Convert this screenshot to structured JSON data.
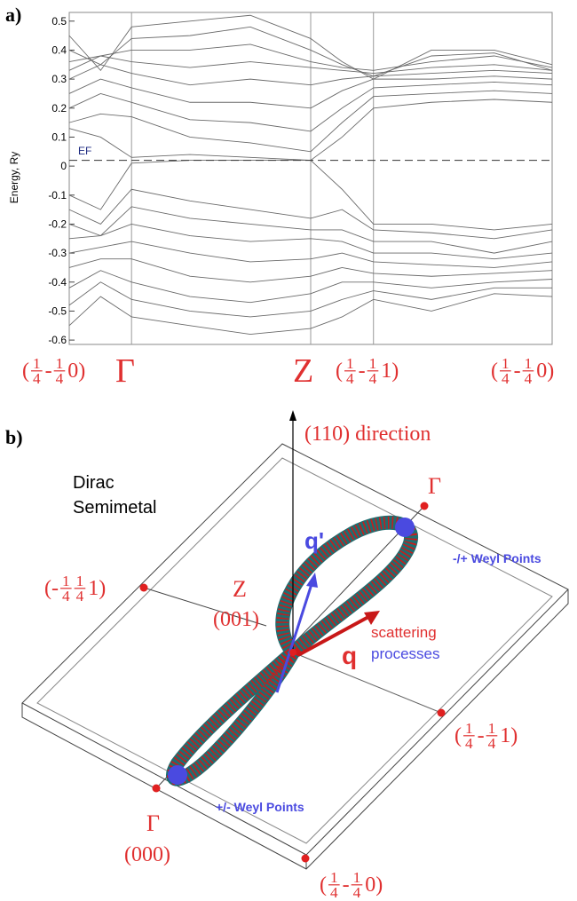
{
  "chart_data": {
    "type": "line",
    "panel_label": "a)",
    "y_label": "Energy, Ry",
    "fermi_label": "EF",
    "fermi_level": 0.02,
    "line_color": "#6a6a6a",
    "xlim": [
      0,
      1
    ],
    "ylim": [
      -0.615,
      0.53
    ],
    "yticks": [
      0.5,
      0.4,
      0.3,
      0.2,
      0.1,
      0,
      -0.1,
      -0.2,
      -0.3,
      -0.4,
      -0.5,
      -0.6
    ],
    "k_point_x": [
      0.129,
      0.5,
      0.63
    ],
    "x": [
      0,
      0.065,
      0.129,
      0.25,
      0.375,
      0.5,
      0.565,
      0.63,
      0.75,
      0.88,
      1
    ],
    "series": [
      {
        "values": [
          0.13,
          0.1,
          0.03,
          0.04,
          0.03,
          0.02,
          0.1,
          0.2,
          0.22,
          0.23,
          0.22
        ]
      },
      {
        "values": [
          0.15,
          0.18,
          0.17,
          0.1,
          0.08,
          0.05,
          0.15,
          0.24,
          0.25,
          0.26,
          0.25
        ]
      },
      {
        "values": [
          0.2,
          0.25,
          0.22,
          0.16,
          0.15,
          0.12,
          0.2,
          0.27,
          0.28,
          0.29,
          0.28
        ]
      },
      {
        "values": [
          0.25,
          0.3,
          0.27,
          0.22,
          0.22,
          0.2,
          0.26,
          0.3,
          0.3,
          0.31,
          0.3
        ]
      },
      {
        "values": [
          0.3,
          0.35,
          0.32,
          0.28,
          0.3,
          0.28,
          0.3,
          0.31,
          0.32,
          0.33,
          0.32
        ]
      },
      {
        "values": [
          0.33,
          0.38,
          0.36,
          0.34,
          0.36,
          0.34,
          0.33,
          0.32,
          0.34,
          0.35,
          0.33
        ]
      },
      {
        "values": [
          0.36,
          0.38,
          0.4,
          0.4,
          0.42,
          0.36,
          0.34,
          0.33,
          0.36,
          0.38,
          0.34
        ]
      },
      {
        "values": [
          0.4,
          0.35,
          0.44,
          0.45,
          0.48,
          0.4,
          0.35,
          0.31,
          0.38,
          0.39,
          0.33
        ]
      },
      {
        "values": [
          0.45,
          0.33,
          0.48,
          0.5,
          0.52,
          0.44,
          0.36,
          0.3,
          0.4,
          0.4,
          0.35
        ]
      },
      {
        "values": [
          -0.1,
          -0.15,
          0.01,
          0.02,
          0.02,
          0.02,
          -0.08,
          -0.2,
          -0.2,
          -0.22,
          -0.2
        ]
      },
      {
        "values": [
          -0.15,
          -0.2,
          -0.08,
          -0.12,
          -0.15,
          -0.18,
          -0.15,
          -0.22,
          -0.23,
          -0.25,
          -0.22
        ]
      },
      {
        "values": [
          -0.2,
          -0.24,
          -0.14,
          -0.18,
          -0.2,
          -0.22,
          -0.22,
          -0.26,
          -0.26,
          -0.3,
          -0.26
        ]
      },
      {
        "values": [
          -0.25,
          -0.24,
          -0.2,
          -0.24,
          -0.26,
          -0.25,
          -0.26,
          -0.3,
          -0.3,
          -0.32,
          -0.3
        ]
      },
      {
        "values": [
          -0.3,
          -0.28,
          -0.26,
          -0.3,
          -0.33,
          -0.32,
          -0.3,
          -0.33,
          -0.34,
          -0.35,
          -0.33
        ]
      },
      {
        "values": [
          -0.35,
          -0.32,
          -0.32,
          -0.38,
          -0.4,
          -0.38,
          -0.35,
          -0.37,
          -0.38,
          -0.37,
          -0.36
        ]
      },
      {
        "values": [
          -0.42,
          -0.36,
          -0.4,
          -0.45,
          -0.47,
          -0.44,
          -0.4,
          -0.4,
          -0.42,
          -0.4,
          -0.39
        ]
      },
      {
        "values": [
          -0.48,
          -0.4,
          -0.46,
          -0.5,
          -0.52,
          -0.5,
          -0.46,
          -0.43,
          -0.46,
          -0.42,
          -0.42
        ]
      },
      {
        "values": [
          -0.55,
          -0.45,
          -0.52,
          -0.55,
          -0.58,
          -0.56,
          -0.52,
          -0.46,
          -0.5,
          -0.44,
          -0.45
        ]
      }
    ],
    "k_point_labels": [
      [
        "(",
        {
          "num": "1",
          "den": "4"
        },
        "-",
        {
          "num": "1",
          "den": "4"
        },
        "0)"
      ],
      [
        "Γ"
      ],
      [
        "Z"
      ],
      [
        "(",
        {
          "num": "1",
          "den": "4"
        },
        "-",
        {
          "num": "1",
          "den": "4"
        },
        "1)"
      ],
      [
        "(",
        {
          "num": "1",
          "den": "4"
        },
        "-",
        {
          "num": "1",
          "den": "4"
        },
        "0)"
      ]
    ]
  },
  "diagram": {
    "panel_label": "b)",
    "labels": [
      [
        "(110) direction"
      ],
      [
        "Γ"
      ],
      [
        "q'"
      ],
      [
        "-/+ Weyl Points"
      ],
      [
        "(-",
        {
          "num": "1",
          "den": "4"
        },
        {
          "num": "1",
          "den": "4"
        },
        "1)"
      ],
      [
        "Z"
      ],
      [
        "(001)"
      ],
      [
        "q"
      ],
      [
        "scattering"
      ],
      [
        "processes"
      ],
      [
        "(",
        {
          "num": "1",
          "den": "4"
        },
        "-",
        {
          "num": "1",
          "den": "4"
        },
        "1)"
      ],
      [
        "+/- Weyl Points"
      ],
      [
        "Γ"
      ],
      [
        "(000)"
      ],
      [
        "(",
        {
          "num": "1",
          "den": "4"
        },
        "-",
        {
          "num": "1",
          "den": "4"
        },
        "0)"
      ]
    ],
    "phase": [
      "Dirac",
      "Semimetal"
    ]
  }
}
